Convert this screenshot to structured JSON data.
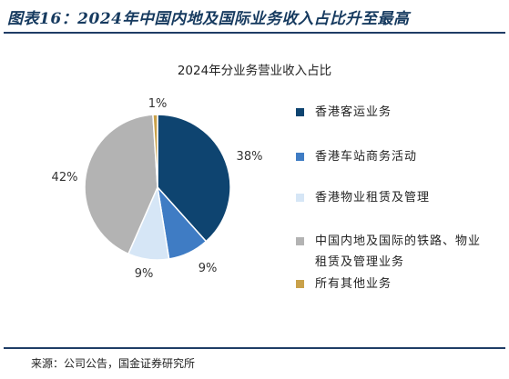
{
  "figure": {
    "title": "图表16：2024年中国内地及国际业务收入占比升至最高",
    "source": "来源：公司公告，国金证券研究所"
  },
  "chart_data": {
    "type": "pie",
    "title": "2024年分业务营业收入占比",
    "legend_position": "right",
    "slices": [
      {
        "label": "香港客运业务",
        "value": 38,
        "value_label": "38%",
        "color": "#0e4470"
      },
      {
        "label": "香港车站商务活动",
        "value": 9,
        "value_label": "9%",
        "color": "#3f7cc4"
      },
      {
        "label": "香港物业租赁及管理",
        "value": 9,
        "value_label": "9%",
        "color": "#d6e6f6"
      },
      {
        "label": "中国内地及国际的铁路、物业租赁及管理业务",
        "value": 42,
        "value_label": "42%",
        "color": "#b3b3b3"
      },
      {
        "label": "所有其他业务",
        "value": 1,
        "value_label": "1%",
        "color": "#c9a14a"
      }
    ]
  }
}
